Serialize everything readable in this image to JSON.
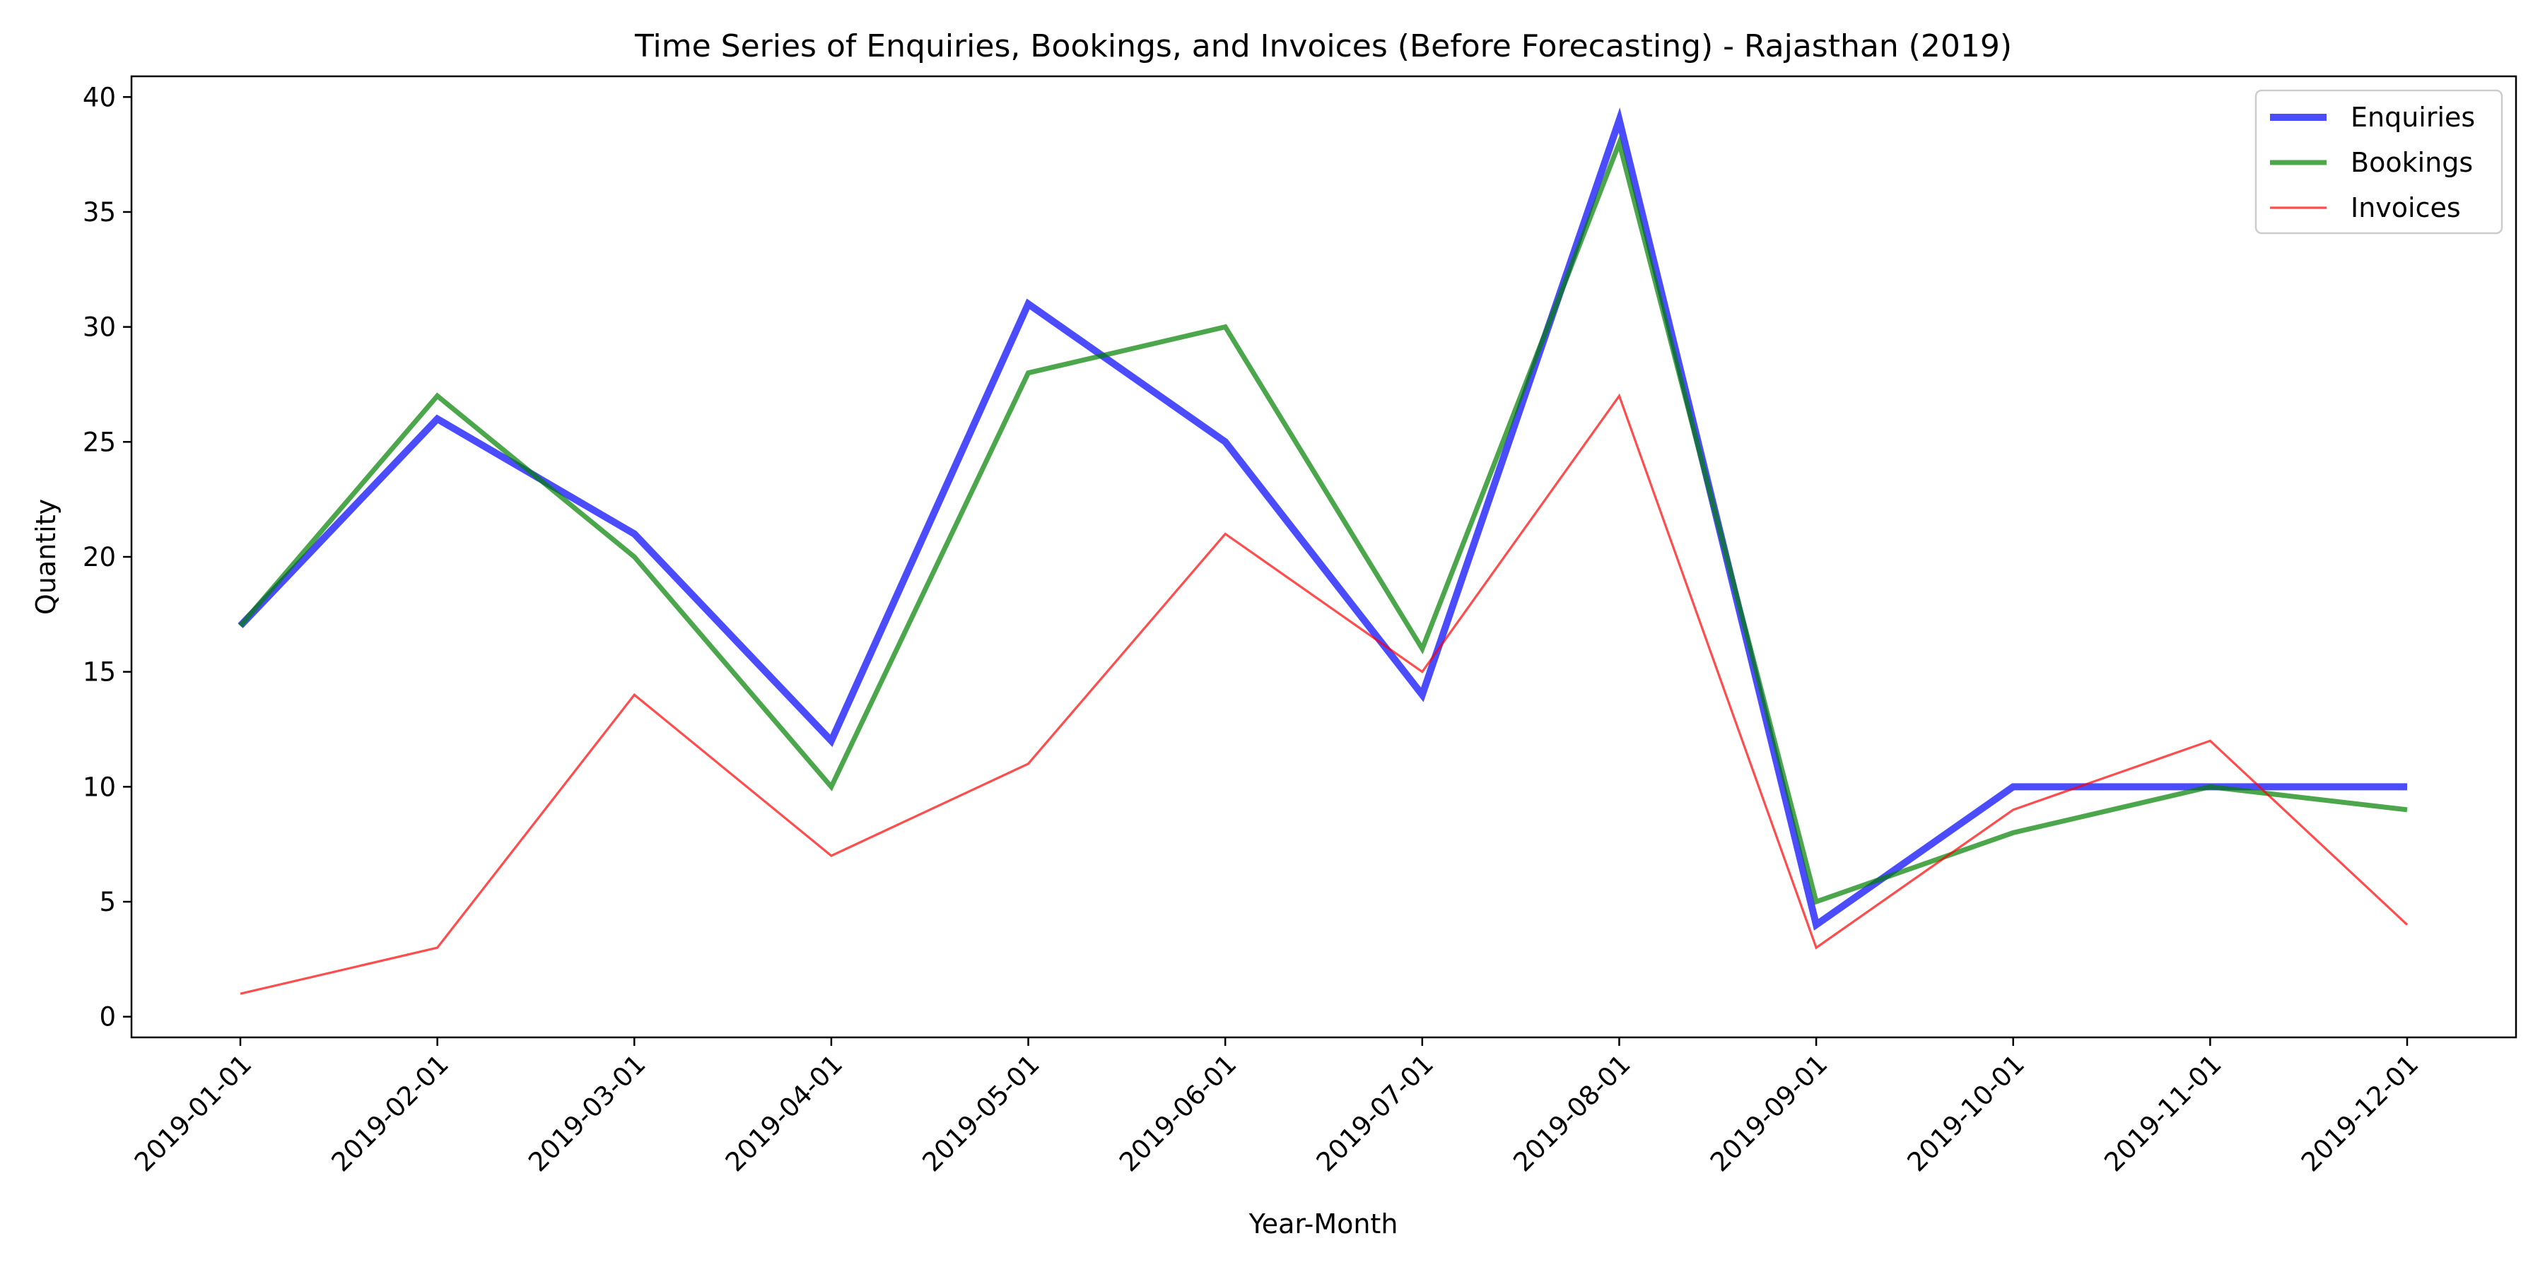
{
  "chart_data": {
    "type": "line",
    "title": "Time Series of Enquiries, Bookings, and Invoices (Before Forecasting) - Rajasthan (2019)",
    "xlabel": "Year-Month",
    "ylabel": "Quantity",
    "categories": [
      "2019-01-01",
      "2019-02-01",
      "2019-03-01",
      "2019-04-01",
      "2019-05-01",
      "2019-06-01",
      "2019-07-01",
      "2019-08-01",
      "2019-09-01",
      "2019-10-01",
      "2019-11-01",
      "2019-12-01"
    ],
    "ylim": [
      -0.9,
      40.9
    ],
    "yticks": [
      0,
      5,
      10,
      15,
      20,
      25,
      30,
      35,
      40
    ],
    "grid": false,
    "legend_position": "top-right",
    "series": [
      {
        "name": "Enquiries",
        "color": "#0000ff",
        "values": [
          17,
          26,
          21,
          12,
          31,
          25,
          14,
          39,
          4,
          10,
          10,
          10
        ]
      },
      {
        "name": "Bookings",
        "color": "#008000",
        "values": [
          17,
          27,
          20,
          10,
          28,
          30,
          16,
          38,
          5,
          8,
          10,
          9
        ]
      },
      {
        "name": "Invoices",
        "color": "#ff0000",
        "values": [
          1,
          3,
          14,
          7,
          11,
          21,
          15,
          27,
          3,
          9,
          12,
          4
        ]
      }
    ]
  }
}
